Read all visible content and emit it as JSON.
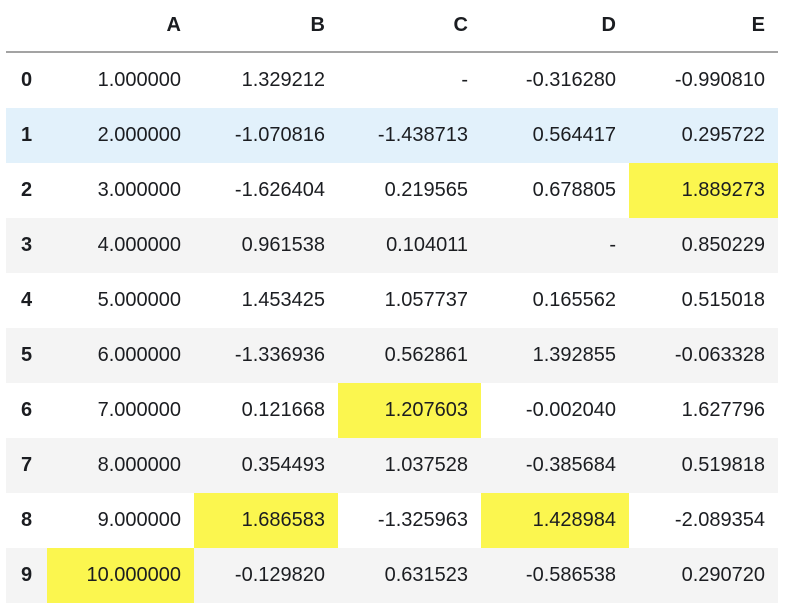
{
  "table": {
    "corner_label": "",
    "columns": [
      "A",
      "B",
      "C",
      "D",
      "E"
    ],
    "rows": [
      {
        "index": "0",
        "cells": [
          "1.000000",
          "1.329212",
          "-",
          "-0.316280",
          "-0.990810"
        ]
      },
      {
        "index": "1",
        "cells": [
          "2.000000",
          "-1.070816",
          "-1.438713",
          "0.564417",
          "0.295722"
        ]
      },
      {
        "index": "2",
        "cells": [
          "3.000000",
          "-1.626404",
          "0.219565",
          "0.678805",
          "1.889273"
        ]
      },
      {
        "index": "3",
        "cells": [
          "4.000000",
          "0.961538",
          "0.104011",
          "-",
          "0.850229"
        ]
      },
      {
        "index": "4",
        "cells": [
          "5.000000",
          "1.453425",
          "1.057737",
          "0.165562",
          "0.515018"
        ]
      },
      {
        "index": "5",
        "cells": [
          "6.000000",
          "-1.336936",
          "0.562861",
          "1.392855",
          "-0.063328"
        ]
      },
      {
        "index": "6",
        "cells": [
          "7.000000",
          "0.121668",
          "1.207603",
          "-0.002040",
          "1.627796"
        ]
      },
      {
        "index": "7",
        "cells": [
          "8.000000",
          "0.354493",
          "1.037528",
          "-0.385684",
          "0.519818"
        ]
      },
      {
        "index": "8",
        "cells": [
          "9.000000",
          "1.686583",
          "-1.325963",
          "1.428984",
          "-2.089354"
        ]
      },
      {
        "index": "9",
        "cells": [
          "10.000000",
          "-0.129820",
          "0.631523",
          "-0.586538",
          "0.290720"
        ]
      }
    ],
    "highlighted_row": 1,
    "highlight_cells": [
      [
        2,
        4
      ],
      [
        6,
        2
      ],
      [
        8,
        1
      ],
      [
        8,
        3
      ],
      [
        9,
        0
      ]
    ],
    "striped_rows": [
      1,
      3,
      5,
      7,
      9
    ],
    "colors": {
      "highlight_yellow": "#fbf64f",
      "row_blue": "#e2f1fb",
      "stripe_gray": "#f4f4f4",
      "header_line": "#a3a3a3",
      "text": "#1b1d21"
    }
  }
}
